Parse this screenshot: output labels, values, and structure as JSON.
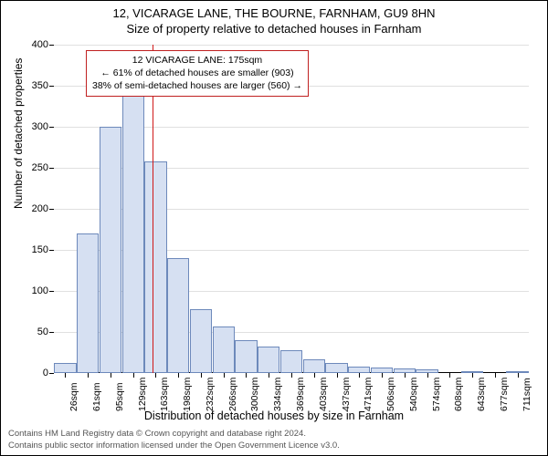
{
  "title_line1": "12, VICARAGE LANE, THE BOURNE, FARNHAM, GU9 8HN",
  "title_line2": "Size of property relative to detached houses in Farnham",
  "y_axis_label": "Number of detached properties",
  "x_axis_label": "Distribution of detached houses by size in Farnham",
  "chart": {
    "type": "histogram",
    "ylim": [
      0,
      400
    ],
    "ytick_step": 50,
    "bar_fill": "#d6e0f2",
    "bar_stroke": "#6d89bb",
    "background": "#ffffff",
    "categories": [
      "26sqm",
      "61sqm",
      "95sqm",
      "129sqm",
      "163sqm",
      "198sqm",
      "232sqm",
      "266sqm",
      "300sqm",
      "334sqm",
      "369sqm",
      "403sqm",
      "437sqm",
      "471sqm",
      "506sqm",
      "540sqm",
      "574sqm",
      "608sqm",
      "643sqm",
      "677sqm",
      "711sqm"
    ],
    "values": [
      12,
      170,
      300,
      341,
      258,
      140,
      78,
      57,
      40,
      32,
      28,
      17,
      12,
      8,
      7,
      6,
      5,
      0,
      2,
      0,
      2
    ],
    "marker_index": 4,
    "marker_color": "#d01818"
  },
  "annotation": {
    "line1": "12 VICARAGE LANE: 175sqm",
    "line2": "← 61% of detached houses are smaller (903)",
    "line3": "38% of semi-detached houses are larger (560) →",
    "border_color": "#c02020"
  },
  "footer": {
    "line1": "Contains HM Land Registry data © Crown copyright and database right 2024.",
    "line2": "Contains public sector information licensed under the Open Government Licence v3.0."
  }
}
